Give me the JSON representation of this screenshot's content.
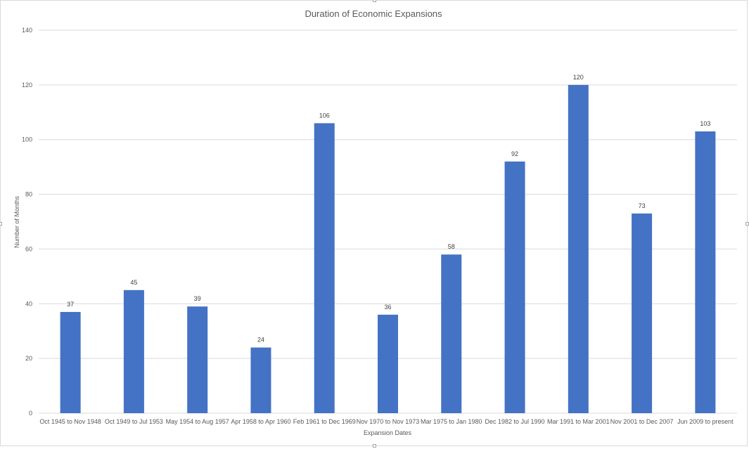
{
  "chart_data": {
    "type": "bar",
    "title": "Duration of Economic Expansions",
    "xlabel": "Expansion Dates",
    "ylabel": "Number of Months",
    "ylim": [
      0,
      140
    ],
    "yticks": [
      0,
      20,
      40,
      60,
      80,
      100,
      120,
      140
    ],
    "grid": true,
    "legend": "none",
    "bar_color": "#4472C4",
    "categories": [
      "Oct 1945 to Nov 1948",
      "Oct 1949 to Jul 1953",
      "May 1954 to Aug 1957",
      "Apr 1958 to Apr 1960",
      "Feb 1961 to Dec 1969",
      "Nov 1970 to Nov 1973",
      "Mar 1975 to Jan 1980",
      "Dec 1982 to Jul 1990",
      "Mar 1991 to Mar 2001",
      "Nov 2001 to Dec 2007",
      "Jun 2009 to present"
    ],
    "values": [
      37,
      45,
      39,
      24,
      106,
      36,
      58,
      92,
      120,
      73,
      103
    ]
  }
}
